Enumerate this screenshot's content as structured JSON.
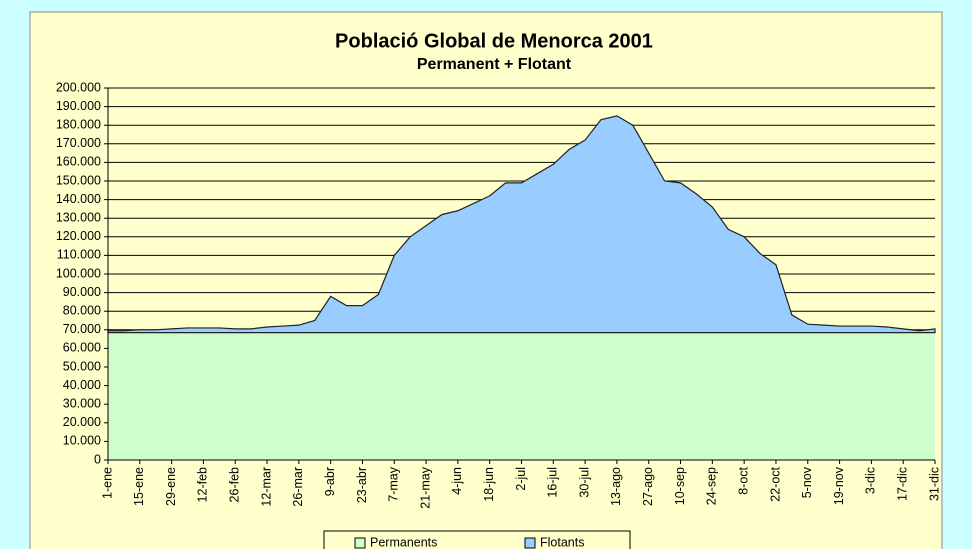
{
  "chart_data": {
    "type": "stacked-area",
    "title": "Població Global de Menorca 2001",
    "subtitle": "Permanent + Flotant",
    "categories": [
      "1-ene",
      null,
      "15-ene",
      null,
      "29-ene",
      null,
      "12-feb",
      null,
      "26-feb",
      null,
      "12-mar",
      null,
      "26-mar",
      null,
      "9-abr",
      null,
      "23-abr",
      null,
      "7-may",
      null,
      "21-may",
      null,
      "4-jun",
      null,
      "18-jun",
      null,
      "2-jul",
      null,
      "16-jul",
      null,
      "30-jul",
      null,
      "13-ago",
      null,
      "27-ago",
      null,
      "10-sep",
      null,
      "24-sep",
      null,
      "8-oct",
      null,
      "22-oct",
      null,
      "5-nov",
      null,
      "19-nov",
      null,
      "3-dic",
      null,
      "17-dic",
      null,
      "31-dic"
    ],
    "series": [
      {
        "name": "Permanents",
        "color": "#ccffcc",
        "values": [
          68500,
          68500,
          68500,
          68500,
          68500,
          68500,
          68500,
          68500,
          68500,
          68500,
          68500,
          68500,
          68500,
          68500,
          68500,
          68500,
          68500,
          68500,
          68500,
          68500,
          68500,
          68500,
          68500,
          68500,
          68500,
          68500,
          68500,
          68500,
          68500,
          68500,
          68500,
          68500,
          68500,
          68500,
          68500,
          68500,
          68500,
          68500,
          68500,
          68500,
          68500,
          68500,
          68500,
          68500,
          68500,
          68500,
          68500,
          68500,
          68500,
          68500,
          68500,
          68500,
          68500
        ]
      },
      {
        "name": "Flotants",
        "color": "#99ccff",
        "values": [
          1000,
          1000,
          1500,
          1500,
          2000,
          2500,
          2500,
          2500,
          2000,
          2000,
          3000,
          3500,
          4000,
          6500,
          19500,
          14500,
          14500,
          20500,
          41500,
          51500,
          57500,
          63500,
          65500,
          69500,
          73500,
          80500,
          80500,
          85500,
          90500,
          98500,
          103500,
          114500,
          116500,
          111500,
          96500,
          81500,
          80500,
          74500,
          67500,
          55500,
          51500,
          42500,
          36500,
          9500,
          4500,
          4000,
          3500,
          3500,
          3500,
          3000,
          2000,
          1000,
          2000
        ]
      }
    ],
    "ylim": [
      0,
      200000
    ],
    "yticks": [
      0,
      {
        "value": 10000,
        "label": "10.000"
      },
      {
        "value": 20000,
        "label": "20.000"
      },
      {
        "value": 30000,
        "label": "30.000"
      },
      {
        "value": 40000,
        "label": "40.000"
      },
      {
        "value": 50000,
        "label": "50.000"
      },
      {
        "value": 60000,
        "label": "60.000"
      },
      {
        "value": 70000,
        "label": "70.000"
      },
      {
        "value": 80000,
        "label": "80.000"
      },
      {
        "value": 90000,
        "label": "90.000"
      },
      {
        "value": 100000,
        "label": "100.000"
      },
      {
        "value": 110000,
        "label": "110.000"
      },
      {
        "value": 120000,
        "label": "120.000"
      },
      {
        "value": 130000,
        "label": "130.000"
      },
      {
        "value": 140000,
        "label": "140.000"
      },
      {
        "value": 150000,
        "label": "150.000"
      },
      {
        "value": 160000,
        "label": "160.000"
      },
      {
        "value": 170000,
        "label": "170.000"
      },
      {
        "value": 180000,
        "label": "180.000"
      },
      {
        "value": 190000,
        "label": "190.000"
      },
      {
        "value": 200000,
        "label": "200.000"
      }
    ],
    "grid": true,
    "legend": "bottom"
  }
}
